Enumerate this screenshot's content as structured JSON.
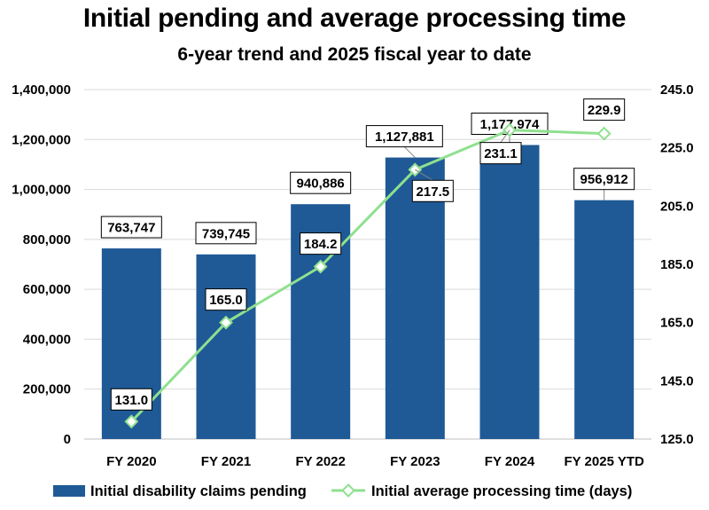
{
  "chart_data": {
    "type": "bar",
    "title": "Initial pending and average processing time",
    "subtitle": "6-year trend and 2025 fiscal year to date",
    "categories": [
      "FY 2020",
      "FY 2021",
      "FY 2022",
      "FY 2023",
      "FY 2024",
      "FY 2025 YTD"
    ],
    "bar_series": {
      "name": "Initial disability claims pending",
      "values": [
        763747,
        739745,
        940886,
        1127881,
        1177974,
        956912
      ],
      "labels": [
        "763,747",
        "739,745",
        "940,886",
        "1,127,881",
        "1,177,974",
        "956,912"
      ],
      "color": "#1f5a96"
    },
    "line_series": {
      "name": "Initial average processing time (days)",
      "values": [
        131.0,
        165.0,
        184.2,
        217.5,
        231.1,
        229.9
      ],
      "labels": [
        "131.0",
        "165.0",
        "184.2",
        "217.5",
        "231.1",
        "229.9"
      ],
      "color": "#8fe08f",
      "marker": "diamond"
    },
    "y_left": {
      "min": 0,
      "max": 1400000,
      "ticks": [
        0,
        200000,
        400000,
        600000,
        800000,
        1000000,
        1200000,
        1400000
      ],
      "tick_labels": [
        "0",
        "200,000",
        "400,000",
        "600,000",
        "800,000",
        "1,000,000",
        "1,200,000",
        "1,400,000"
      ]
    },
    "y_right": {
      "min": 125,
      "max": 245,
      "ticks": [
        125,
        145,
        165,
        185,
        205,
        225,
        245
      ],
      "tick_labels": [
        "125.0",
        "145.0",
        "165.0",
        "185.0",
        "205.0",
        "225.0",
        "245.0"
      ]
    },
    "grid": true,
    "legend_position": "bottom"
  }
}
